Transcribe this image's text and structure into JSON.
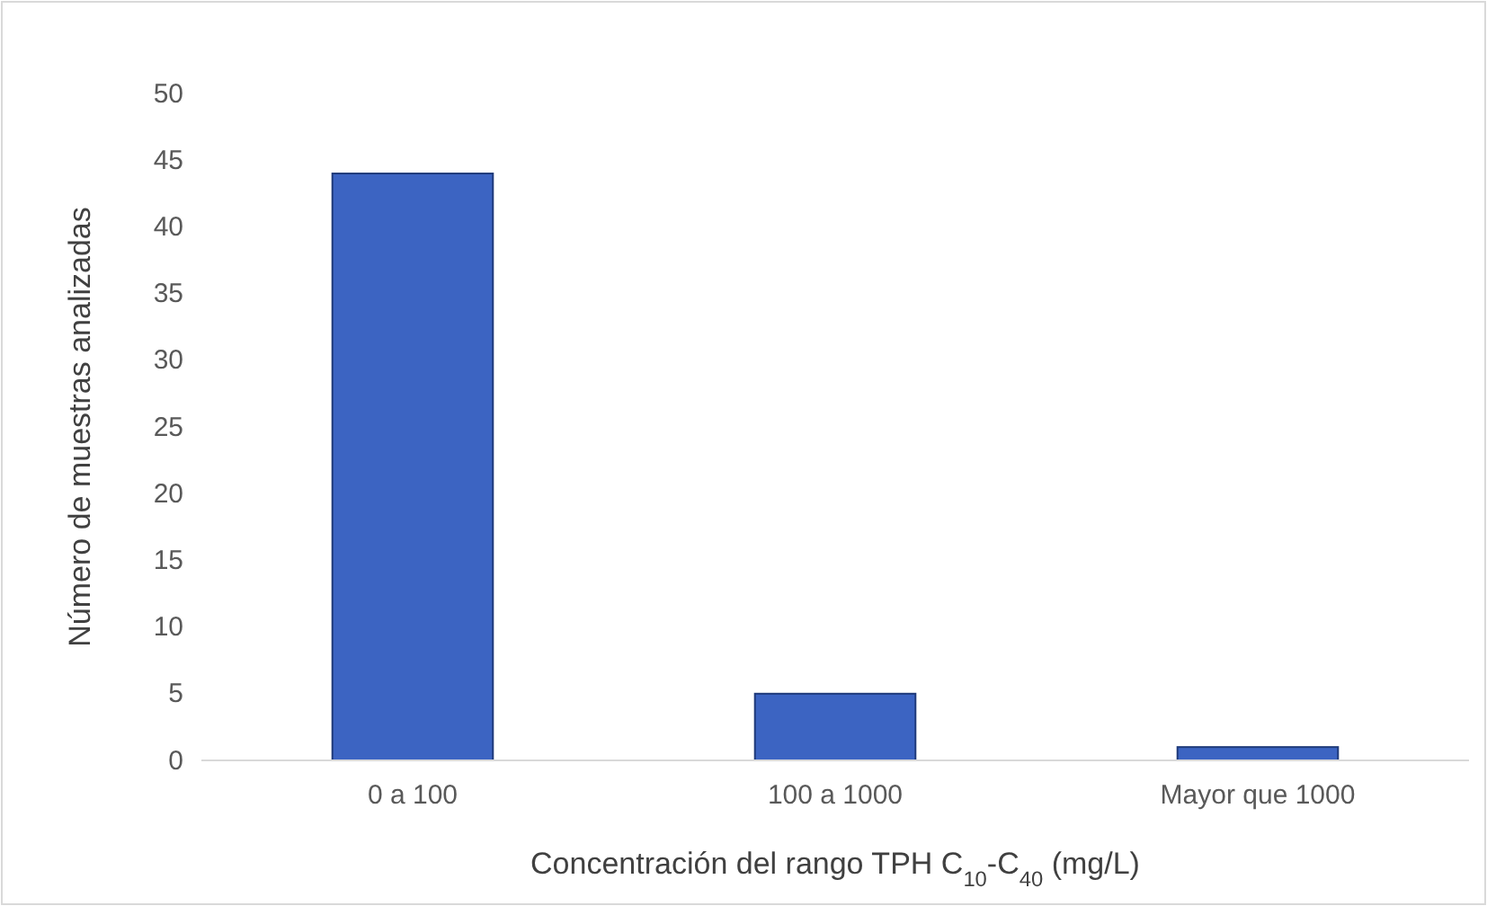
{
  "chart_data": {
    "type": "bar",
    "xlabel": "Concentración del rango TPH C$_{10}$-C$_{40}$ (mg/L)",
    "ylabel": "Número de muestras analizadas",
    "categories": [
      "0 a 100",
      "100 a 1000",
      "Mayor que 1000"
    ],
    "values": [
      44,
      5,
      1
    ],
    "color": "#3c64c2",
    "ylim": [
      0,
      50
    ],
    "yticks": [
      0,
      5,
      10,
      15,
      20,
      25,
      30,
      35,
      40,
      45,
      50
    ],
    "grid": false
  }
}
